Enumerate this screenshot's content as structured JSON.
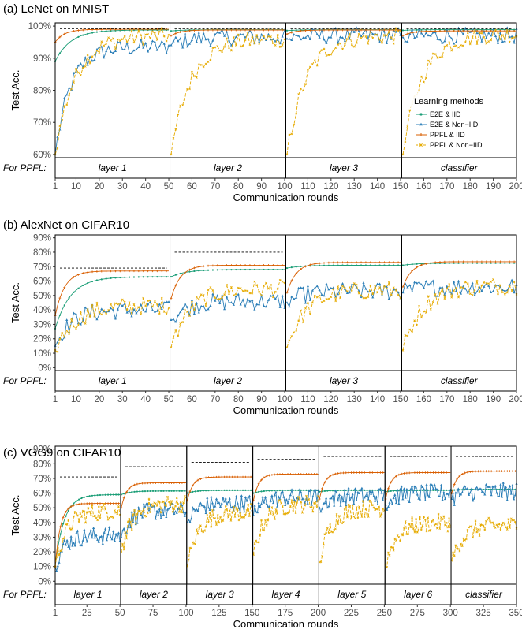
{
  "legend": {
    "title": "Learning methods",
    "entries": [
      {
        "label": "E2E & IID",
        "color": "#1b9e77",
        "marker": "circle",
        "dash": "solid"
      },
      {
        "label": "E2E & Non−IID",
        "color": "#2c7fb8",
        "marker": "triangle",
        "dash": "solid"
      },
      {
        "label": "PPFL & IID",
        "color": "#d95f02",
        "marker": "plus",
        "dash": "solid"
      },
      {
        "label": "PPFL & Non−IID",
        "color": "#e6ab02",
        "marker": "cross",
        "dash": "dashed"
      }
    ]
  },
  "chart_data": [
    {
      "type": "line",
      "title": "(a) LeNet on MNIST",
      "xlabel": "Communication rounds",
      "ylabel": "Test Acc.",
      "strip_label": "For PPFL:",
      "ylim": [
        59,
        101
      ],
      "yticks": [
        60,
        70,
        80,
        90,
        100
      ],
      "ytick_labels": [
        "60%",
        "70%",
        "80%",
        "90%",
        "100%"
      ],
      "x_range": [
        1,
        200
      ],
      "xticks": [
        1,
        10,
        20,
        30,
        40,
        50,
        60,
        70,
        80,
        90,
        100,
        110,
        120,
        130,
        140,
        150,
        160,
        170,
        180,
        190,
        200
      ],
      "xtick_labels": [
        "1",
        "10",
        "20",
        "30",
        "40",
        "50",
        "60",
        "70",
        "80",
        "90",
        "100",
        "110",
        "120",
        "130",
        "140",
        "150",
        "160",
        "170",
        "180",
        "190",
        "200"
      ],
      "panels": [
        {
          "label": "layer 1",
          "range": [
            1,
            50
          ],
          "ref": 99.2,
          "e2e_iid": {
            "start": 89,
            "end": 98.8
          },
          "e2e_noniid": {
            "start": 60,
            "end": 93.5
          },
          "ppfl_iid": {
            "start": 95,
            "end": 99
          },
          "ppfl_noniid": {
            "start": 60,
            "end": 97
          }
        },
        {
          "label": "layer 2",
          "range": [
            51,
            100
          ],
          "ref": 99.2,
          "e2e_iid": {
            "start": 98.5,
            "end": 98.9
          },
          "e2e_noniid": {
            "start": 94,
            "end": 96.5
          },
          "ppfl_iid": {
            "start": 97,
            "end": 98.8
          },
          "ppfl_noniid": {
            "start": 60,
            "end": 96
          }
        },
        {
          "label": "layer 3",
          "range": [
            101,
            150
          ],
          "ref": 99.2,
          "e2e_iid": {
            "start": 98.6,
            "end": 98.9
          },
          "e2e_noniid": {
            "start": 96,
            "end": 97
          },
          "ppfl_iid": {
            "start": 97.5,
            "end": 98.8
          },
          "ppfl_noniid": {
            "start": 60,
            "end": 97
          }
        },
        {
          "label": "classifier",
          "range": [
            151,
            200
          ],
          "ref": 99.2,
          "e2e_iid": {
            "start": 98.7,
            "end": 98.9
          },
          "e2e_noniid": {
            "start": 96.5,
            "end": 97
          },
          "ppfl_iid": {
            "start": 97,
            "end": 98.5
          },
          "ppfl_noniid": {
            "start": 60,
            "end": 97.5
          }
        }
      ]
    },
    {
      "type": "line",
      "title": "(b) AlexNet on CIFAR10",
      "xlabel": "Communication rounds",
      "ylabel": "Test Acc.",
      "strip_label": "For PPFL:",
      "ylim": [
        -2,
        92
      ],
      "yticks": [
        0,
        10,
        20,
        30,
        40,
        50,
        60,
        70,
        80,
        90
      ],
      "ytick_labels": [
        "0%",
        "10%",
        "20%",
        "30%",
        "40%",
        "50%",
        "60%",
        "70%",
        "80%",
        "90%"
      ],
      "x_range": [
        1,
        200
      ],
      "xticks": [
        1,
        10,
        20,
        30,
        40,
        50,
        60,
        70,
        80,
        90,
        100,
        110,
        120,
        130,
        140,
        150,
        160,
        170,
        180,
        190,
        200
      ],
      "xtick_labels": [
        "1",
        "10",
        "20",
        "30",
        "40",
        "50",
        "60",
        "70",
        "80",
        "90",
        "100",
        "110",
        "120",
        "130",
        "140",
        "150",
        "160",
        "170",
        "180",
        "190",
        "200"
      ],
      "panels": [
        {
          "label": "layer 1",
          "range": [
            1,
            50
          ],
          "ref": 69,
          "e2e_iid": {
            "start": 27,
            "end": 63
          },
          "e2e_noniid": {
            "start": 15,
            "end": 40
          },
          "ppfl_iid": {
            "start": 36,
            "end": 67
          },
          "ppfl_noniid": {
            "start": 12,
            "end": 43
          }
        },
        {
          "label": "layer 2",
          "range": [
            51,
            100
          ],
          "ref": 80,
          "e2e_iid": {
            "start": 63,
            "end": 68
          },
          "e2e_noniid": {
            "start": 33,
            "end": 46
          },
          "ppfl_iid": {
            "start": 48,
            "end": 71
          },
          "ppfl_noniid": {
            "start": 14,
            "end": 55
          }
        },
        {
          "label": "layer 3",
          "range": [
            101,
            150
          ],
          "ref": 83,
          "e2e_iid": {
            "start": 69,
            "end": 71
          },
          "e2e_noniid": {
            "start": 45,
            "end": 53
          },
          "ppfl_iid": {
            "start": 52,
            "end": 73
          },
          "ppfl_noniid": {
            "start": 14,
            "end": 54
          }
        },
        {
          "label": "classifier",
          "range": [
            151,
            200
          ],
          "ref": 83,
          "e2e_iid": {
            "start": 71,
            "end": 72.5
          },
          "e2e_noniid": {
            "start": 52,
            "end": 56
          },
          "ppfl_iid": {
            "start": 56,
            "end": 73.5
          },
          "ppfl_noniid": {
            "start": 12,
            "end": 57
          }
        }
      ]
    },
    {
      "type": "line",
      "title": "(c) VGG9 on CIFAR10",
      "xlabel": "Communication rounds",
      "ylabel": "Test Acc.",
      "strip_label": "For PPFL:",
      "ylim": [
        -2,
        92
      ],
      "yticks": [
        0,
        10,
        20,
        30,
        40,
        50,
        60,
        70,
        80,
        90
      ],
      "ytick_labels": [
        "0%",
        "10%",
        "20%",
        "30%",
        "40%",
        "50%",
        "60%",
        "70%",
        "80%",
        "90%"
      ],
      "x_range": [
        1,
        350
      ],
      "xticks": [
        1,
        25,
        50,
        75,
        100,
        125,
        150,
        175,
        200,
        225,
        250,
        275,
        300,
        325,
        350
      ],
      "xtick_labels": [
        "1",
        "25",
        "50",
        "75",
        "100",
        "125",
        "150",
        "175",
        "200",
        "225",
        "250",
        "275",
        "300",
        "325",
        "350"
      ],
      "panels": [
        {
          "label": "layer 1",
          "range": [
            1,
            50
          ],
          "ref": 71,
          "e2e_iid": {
            "start": 10,
            "end": 59
          },
          "e2e_noniid": {
            "start": 10,
            "end": 31
          },
          "ppfl_iid": {
            "start": 10,
            "end": 53
          },
          "ppfl_noniid": {
            "start": 10,
            "end": 48
          }
        },
        {
          "label": "layer 2",
          "range": [
            51,
            100
          ],
          "ref": 78,
          "e2e_iid": {
            "start": 59,
            "end": 61.5
          },
          "e2e_noniid": {
            "start": 30,
            "end": 48
          },
          "ppfl_iid": {
            "start": 50,
            "end": 67
          },
          "ppfl_noniid": {
            "start": 20,
            "end": 53
          }
        },
        {
          "label": "layer 3",
          "range": [
            101,
            150
          ],
          "ref": 81,
          "e2e_iid": {
            "start": 60,
            "end": 62
          },
          "e2e_noniid": {
            "start": 40,
            "end": 53
          },
          "ppfl_iid": {
            "start": 55,
            "end": 71
          },
          "ppfl_noniid": {
            "start": 10,
            "end": 47
          }
        },
        {
          "label": "layer 4",
          "range": [
            151,
            200
          ],
          "ref": 83,
          "e2e_iid": {
            "start": 60,
            "end": 62
          },
          "e2e_noniid": {
            "start": 45,
            "end": 57
          },
          "ppfl_iid": {
            "start": 55,
            "end": 73
          },
          "ppfl_noniid": {
            "start": 18,
            "end": 53
          }
        },
        {
          "label": "layer 5",
          "range": [
            201,
            250
          ],
          "ref": 85,
          "e2e_iid": {
            "start": 61,
            "end": 62
          },
          "e2e_noniid": {
            "start": 50,
            "end": 58
          },
          "ppfl_iid": {
            "start": 56,
            "end": 74
          },
          "ppfl_noniid": {
            "start": 13,
            "end": 50
          }
        },
        {
          "label": "layer 6",
          "range": [
            251,
            300
          ],
          "ref": 85,
          "e2e_iid": {
            "start": 61,
            "end": 62
          },
          "e2e_noniid": {
            "start": 52,
            "end": 60
          },
          "ppfl_iid": {
            "start": 56,
            "end": 74
          },
          "ppfl_noniid": {
            "start": 11,
            "end": 40
          }
        },
        {
          "label": "classifier",
          "range": [
            301,
            350
          ],
          "ref": 85,
          "e2e_iid": {
            "start": 62,
            "end": 62.5
          },
          "e2e_noniid": {
            "start": 56,
            "end": 61
          },
          "ppfl_iid": {
            "start": 60,
            "end": 75
          },
          "ppfl_noniid": {
            "start": 14,
            "end": 38
          }
        }
      ]
    }
  ]
}
